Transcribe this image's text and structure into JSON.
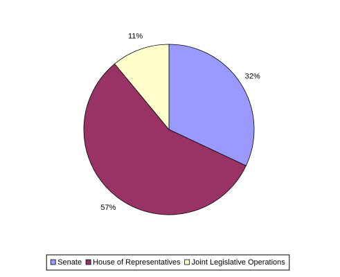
{
  "chart_data": {
    "type": "pie",
    "categories": [
      "Senate",
      "House of Representatives",
      "Joint Legislative Operations"
    ],
    "values": [
      32,
      57,
      11
    ],
    "value_labels": [
      "32%",
      "57%",
      "11%"
    ],
    "colors": [
      "#9999ff",
      "#993366",
      "#ffffcc"
    ],
    "legend": "bottom"
  }
}
